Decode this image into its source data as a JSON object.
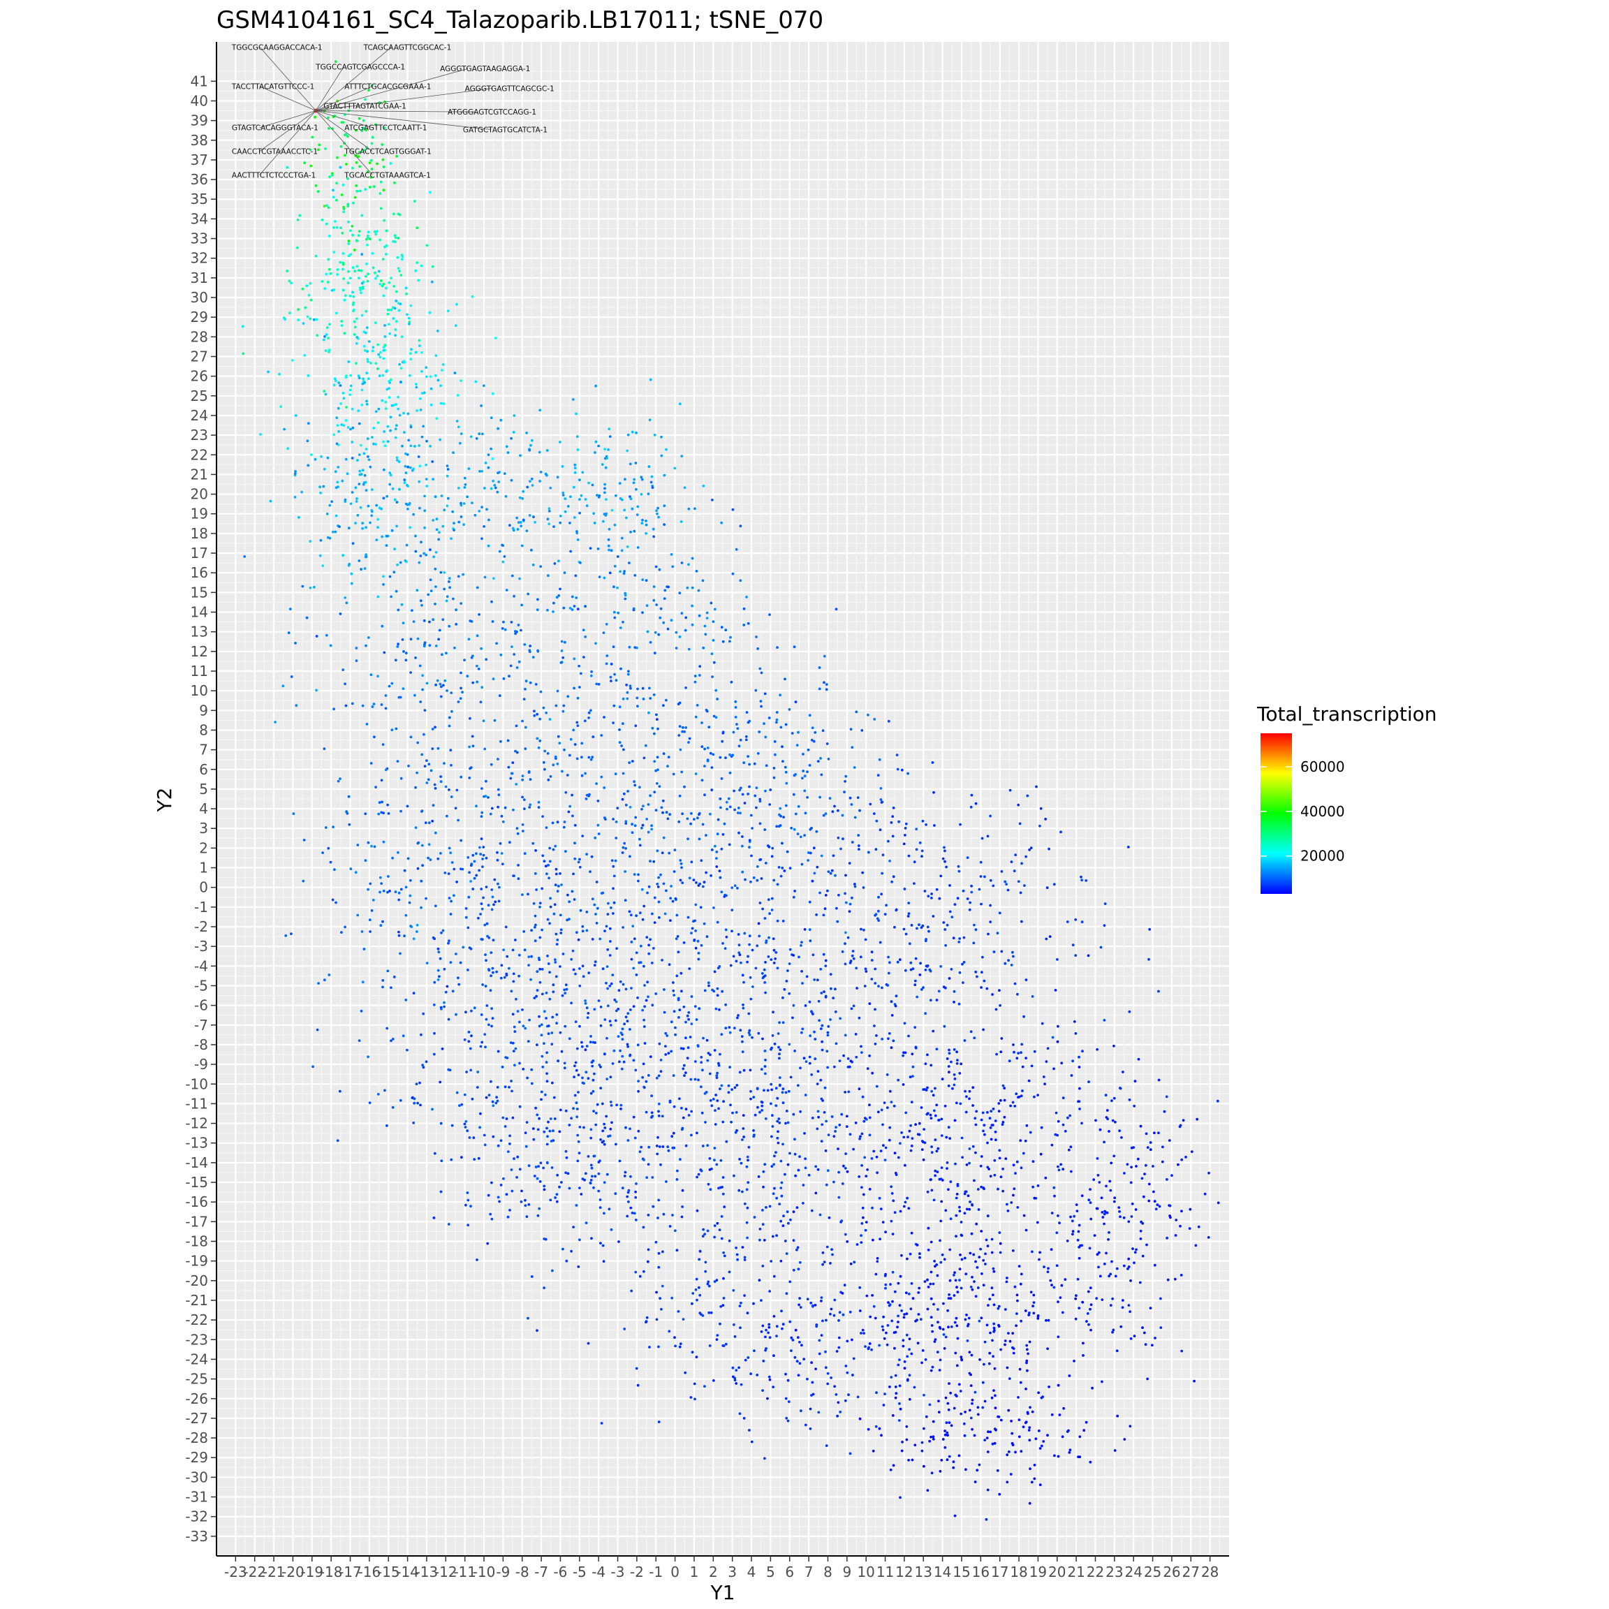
{
  "chart_data": {
    "type": "scatter",
    "title": "GSM4104161_SC4_Talazoparib.LB17011; tSNE_070",
    "xlabel": "Y1",
    "ylabel": "Y2",
    "xlim": [
      -24,
      29
    ],
    "ylim": [
      -34,
      43
    ],
    "x_ticks": [
      -23,
      -22,
      -21,
      -20,
      -19,
      -18,
      -17,
      -16,
      -15,
      -14,
      -13,
      -12,
      -11,
      -10,
      -9,
      -8,
      -7,
      -6,
      -5,
      -4,
      -3,
      -2,
      -1,
      0,
      1,
      2,
      3,
      4,
      5,
      6,
      7,
      8,
      9,
      10,
      11,
      12,
      13,
      14,
      15,
      16,
      17,
      18,
      19,
      20,
      21,
      22,
      23,
      24,
      25,
      26,
      27,
      28
    ],
    "y_ticks": [
      -33,
      -32,
      -31,
      -30,
      -29,
      -28,
      -27,
      -26,
      -25,
      -24,
      -23,
      -22,
      -21,
      -20,
      -19,
      -18,
      -17,
      -16,
      -15,
      -14,
      -13,
      -12,
      -11,
      -10,
      -9,
      -8,
      -7,
      -6,
      -5,
      -4,
      -3,
      -2,
      -1,
      0,
      1,
      2,
      3,
      4,
      5,
      6,
      7,
      8,
      9,
      10,
      11,
      12,
      13,
      14,
      15,
      16,
      17,
      18,
      19,
      20,
      21,
      22,
      23,
      24,
      25,
      26,
      27,
      28,
      29,
      30,
      31,
      32,
      33,
      34,
      35,
      36,
      37,
      38,
      39,
      40,
      41
    ],
    "legend": {
      "title": "Total_transcription",
      "position": "right",
      "min": 3000,
      "max": 75000,
      "breaks": [
        20000,
        40000,
        60000
      ],
      "break_labels": [
        "20000",
        "40000",
        "60000"
      ],
      "colors": [
        "#0000ff",
        "#00ffff",
        "#00ff00",
        "#ffff00",
        "#ff0000"
      ]
    },
    "grid": true,
    "regions": [
      {
        "cx": -17,
        "cy": 37,
        "sx": 1.2,
        "sy": 2,
        "n": 90,
        "v": 34000
      },
      {
        "cx": -16.5,
        "cy": 31,
        "sx": 1.8,
        "sy": 2.5,
        "n": 200,
        "v": 25000
      },
      {
        "cx": -15.5,
        "cy": 26,
        "sx": 2.5,
        "sy": 2.5,
        "n": 190,
        "v": 19000
      },
      {
        "cx": -16,
        "cy": 20,
        "sx": 2,
        "sy": 2.5,
        "n": 160,
        "v": 15000
      },
      {
        "cx": -9,
        "cy": 20,
        "sx": 2.5,
        "sy": 2.5,
        "n": 130,
        "v": 14500
      },
      {
        "cx": -3,
        "cy": 20,
        "sx": 2,
        "sy": 2,
        "n": 110,
        "v": 14500
      },
      {
        "cx": -12,
        "cy": 13,
        "sx": 3.5,
        "sy": 3,
        "n": 180,
        "v": 11500
      },
      {
        "cx": -1,
        "cy": 15,
        "sx": 3,
        "sy": 2.5,
        "n": 110,
        "v": 12000
      },
      {
        "cx": -14,
        "cy": 3,
        "sx": 2.5,
        "sy": 5,
        "n": 170,
        "v": 10500
      },
      {
        "cx": -3,
        "cy": 6,
        "sx": 5,
        "sy": 4,
        "n": 420,
        "v": 10000
      },
      {
        "cx": 6,
        "cy": 6,
        "sx": 3,
        "sy": 3,
        "n": 140,
        "v": 10000
      },
      {
        "cx": -8,
        "cy": -4,
        "sx": 4,
        "sy": 4.5,
        "n": 380,
        "v": 8500
      },
      {
        "cx": 2,
        "cy": -4,
        "sx": 5,
        "sy": 4.5,
        "n": 450,
        "v": 8000
      },
      {
        "cx": 13,
        "cy": -2,
        "sx": 4.5,
        "sy": 4,
        "n": 320,
        "v": 7000
      },
      {
        "cx": -7,
        "cy": -13,
        "sx": 3.5,
        "sy": 3,
        "n": 230,
        "v": 7500
      },
      {
        "cx": 3,
        "cy": -13,
        "sx": 5,
        "sy": 4,
        "n": 420,
        "v": 7000
      },
      {
        "cx": 15,
        "cy": -13,
        "sx": 4.5,
        "sy": 3.5,
        "n": 380,
        "v": 5500
      },
      {
        "cx": 23.5,
        "cy": -16,
        "sx": 2,
        "sy": 3,
        "n": 160,
        "v": 5000
      },
      {
        "cx": 6,
        "cy": -23,
        "sx": 4.5,
        "sy": 2.5,
        "n": 250,
        "v": 6500
      },
      {
        "cx": 16,
        "cy": -22,
        "sx": 4,
        "sy": 3,
        "n": 320,
        "v": 4500
      },
      {
        "cx": 16,
        "cy": -28,
        "sx": 2.5,
        "sy": 1.5,
        "n": 120,
        "v": 4000
      }
    ],
    "highlight": {
      "x": -18.8,
      "y": 39.5,
      "v": 72000
    },
    "annotations": [
      {
        "text": "TGGCGCAAGGACCACA-1",
        "x": -23.2,
        "y": 42.6,
        "anchor": "start"
      },
      {
        "text": "TCAGCAAGTTCGGCAC-1",
        "x": -16.3,
        "y": 42.6,
        "anchor": "start"
      },
      {
        "text": "TGGCCAGTCGAGCCCA-1",
        "x": -18.8,
        "y": 41.6,
        "anchor": "start"
      },
      {
        "text": "AGGGTGAGTAAGAGGA-1",
        "x": -12.3,
        "y": 41.5,
        "anchor": "start"
      },
      {
        "text": "TACCTTACATGTTCCC-1",
        "x": -23.2,
        "y": 40.6,
        "anchor": "start"
      },
      {
        "text": "ATTTCTGCACGCGAAA-1",
        "x": -17.3,
        "y": 40.6,
        "anchor": "start"
      },
      {
        "text": "AGGGTGAGTTCAGCGC-1",
        "x": -11.0,
        "y": 40.5,
        "anchor": "start"
      },
      {
        "text": "GTACTTTAGTATCGAA-1",
        "x": -18.4,
        "y": 39.6,
        "anchor": "start"
      },
      {
        "text": "ATGGGAGTCGTCCAGG-1",
        "x": -11.9,
        "y": 39.3,
        "anchor": "start"
      },
      {
        "text": "GTAGTCACAGGGTACA-1",
        "x": -23.2,
        "y": 38.5,
        "anchor": "start"
      },
      {
        "text": "ATCGAGTTCCTCAATT-1",
        "x": -17.3,
        "y": 38.5,
        "anchor": "start"
      },
      {
        "text": "GATGCTAGTGCATCTA-1",
        "x": -11.1,
        "y": 38.4,
        "anchor": "start"
      },
      {
        "text": "CAACCTCGTAAACCTC-1",
        "x": -23.2,
        "y": 37.3,
        "anchor": "start"
      },
      {
        "text": "TGCACCTCAGTGGGAT-1",
        "x": -17.3,
        "y": 37.3,
        "anchor": "start"
      },
      {
        "text": "AACTTTCTCTCCCTGA-1",
        "x": -23.2,
        "y": 36.1,
        "anchor": "start"
      },
      {
        "text": "TGCACCTGTAAAGTCA-1",
        "x": -17.3,
        "y": 36.1,
        "anchor": "start"
      }
    ]
  }
}
